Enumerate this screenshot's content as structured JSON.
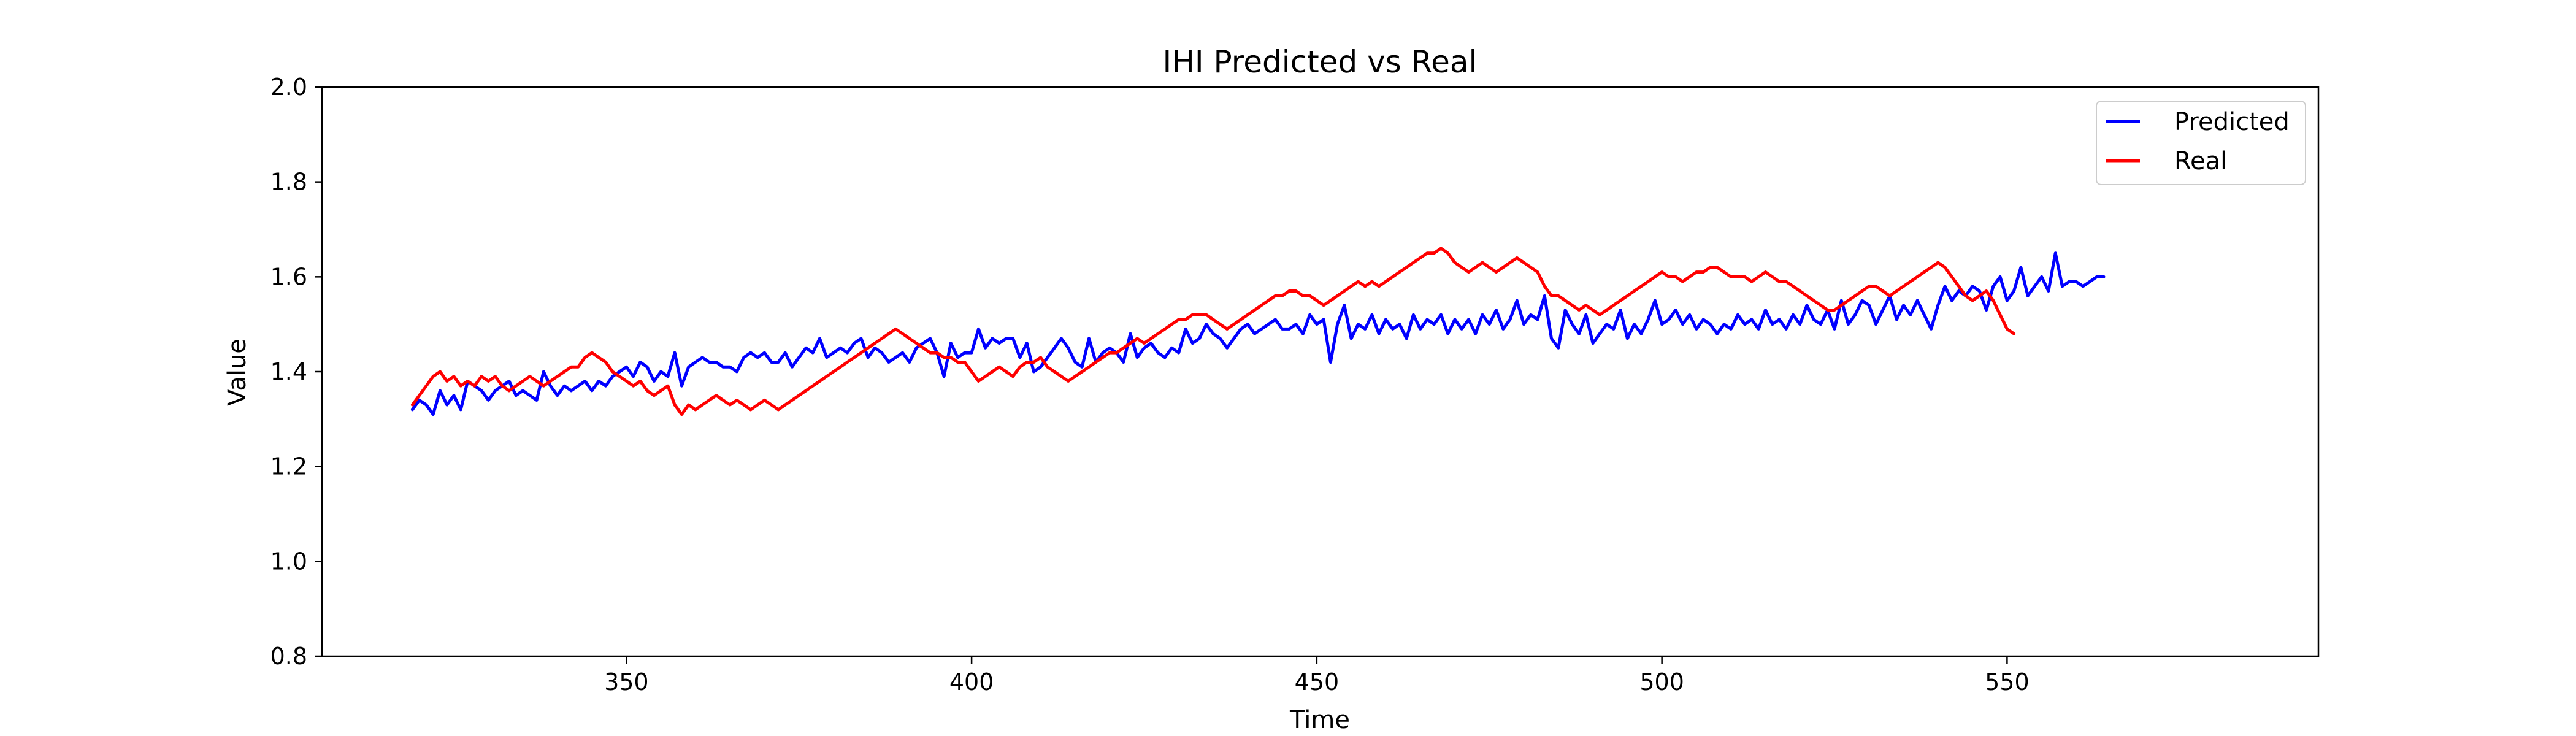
{
  "chart_data": {
    "type": "line",
    "title": "IHI Predicted vs Real",
    "xlabel": "Time",
    "ylabel": "Value",
    "xlim": [
      305.9,
      595.1
    ],
    "ylim": [
      0.8,
      2.0
    ],
    "x_ticks": [
      350,
      400,
      450,
      500,
      550
    ],
    "y_ticks": [
      0.8,
      1.0,
      1.2,
      1.4,
      1.6,
      1.8,
      2.0
    ],
    "y_tick_labels": [
      "0.8",
      "1.0",
      "1.2",
      "1.4",
      "1.6",
      "1.8",
      "2.0"
    ],
    "grid": false,
    "legend_position": "top-right",
    "x_start": 319,
    "x_step": 1,
    "series": [
      {
        "name": "Predicted",
        "color": "#0000ff",
        "values": [
          1.32,
          1.34,
          1.33,
          1.31,
          1.36,
          1.33,
          1.35,
          1.32,
          1.38,
          1.37,
          1.36,
          1.34,
          1.36,
          1.37,
          1.38,
          1.35,
          1.36,
          1.35,
          1.34,
          1.4,
          1.37,
          1.35,
          1.37,
          1.36,
          1.37,
          1.38,
          1.36,
          1.38,
          1.37,
          1.39,
          1.4,
          1.41,
          1.39,
          1.42,
          1.41,
          1.38,
          1.4,
          1.39,
          1.44,
          1.37,
          1.41,
          1.42,
          1.43,
          1.42,
          1.42,
          1.41,
          1.41,
          1.4,
          1.43,
          1.44,
          1.43,
          1.44,
          1.42,
          1.42,
          1.44,
          1.41,
          1.43,
          1.45,
          1.44,
          1.47,
          1.43,
          1.44,
          1.45,
          1.44,
          1.46,
          1.47,
          1.43,
          1.45,
          1.44,
          1.42,
          1.43,
          1.44,
          1.42,
          1.45,
          1.46,
          1.47,
          1.44,
          1.39,
          1.46,
          1.43,
          1.44,
          1.44,
          1.49,
          1.45,
          1.47,
          1.46,
          1.47,
          1.47,
          1.43,
          1.46,
          1.4,
          1.41,
          1.43,
          1.45,
          1.47,
          1.45,
          1.42,
          1.41,
          1.47,
          1.42,
          1.44,
          1.45,
          1.44,
          1.42,
          1.48,
          1.43,
          1.45,
          1.46,
          1.44,
          1.43,
          1.45,
          1.44,
          1.49,
          1.46,
          1.47,
          1.5,
          1.48,
          1.47,
          1.45,
          1.47,
          1.49,
          1.5,
          1.48,
          1.49,
          1.5,
          1.51,
          1.49,
          1.49,
          1.5,
          1.48,
          1.52,
          1.5,
          1.51,
          1.42,
          1.5,
          1.54,
          1.47,
          1.5,
          1.49,
          1.52,
          1.48,
          1.51,
          1.49,
          1.5,
          1.47,
          1.52,
          1.49,
          1.51,
          1.5,
          1.52,
          1.48,
          1.51,
          1.49,
          1.51,
          1.48,
          1.52,
          1.5,
          1.53,
          1.49,
          1.51,
          1.55,
          1.5,
          1.52,
          1.51,
          1.56,
          1.47,
          1.45,
          1.53,
          1.5,
          1.48,
          1.52,
          1.46,
          1.48,
          1.5,
          1.49,
          1.53,
          1.47,
          1.5,
          1.48,
          1.51,
          1.55,
          1.5,
          1.51,
          1.53,
          1.5,
          1.52,
          1.49,
          1.51,
          1.5,
          1.48,
          1.5,
          1.49,
          1.52,
          1.5,
          1.51,
          1.49,
          1.53,
          1.5,
          1.51,
          1.49,
          1.52,
          1.5,
          1.54,
          1.51,
          1.5,
          1.53,
          1.49,
          1.55,
          1.5,
          1.52,
          1.55,
          1.54,
          1.5,
          1.53,
          1.56,
          1.51,
          1.54,
          1.52,
          1.55,
          1.52,
          1.49,
          1.54,
          1.58,
          1.55,
          1.57,
          1.56,
          1.58,
          1.57,
          1.53,
          1.58,
          1.6,
          1.55,
          1.57,
          1.62,
          1.56,
          1.58,
          1.6,
          1.57,
          1.65,
          1.58,
          1.59,
          1.59,
          1.58,
          1.59,
          1.6,
          1.6
        ]
      },
      {
        "name": "Real",
        "color": "#ff0000",
        "values": [
          1.33,
          1.35,
          1.37,
          1.39,
          1.4,
          1.38,
          1.39,
          1.37,
          1.38,
          1.37,
          1.39,
          1.38,
          1.39,
          1.37,
          1.36,
          1.37,
          1.38,
          1.39,
          1.38,
          1.37,
          1.38,
          1.39,
          1.4,
          1.41,
          1.41,
          1.43,
          1.44,
          1.43,
          1.42,
          1.4,
          1.39,
          1.38,
          1.37,
          1.38,
          1.36,
          1.35,
          1.36,
          1.37,
          1.33,
          1.31,
          1.33,
          1.32,
          1.33,
          1.34,
          1.35,
          1.34,
          1.33,
          1.34,
          1.33,
          1.32,
          1.33,
          1.34,
          1.33,
          1.32,
          1.33,
          1.34,
          1.35,
          1.36,
          1.37,
          1.38,
          1.39,
          1.4,
          1.41,
          1.42,
          1.43,
          1.44,
          1.45,
          1.46,
          1.47,
          1.48,
          1.49,
          1.48,
          1.47,
          1.46,
          1.45,
          1.44,
          1.44,
          1.43,
          1.43,
          1.42,
          1.42,
          1.4,
          1.38,
          1.39,
          1.4,
          1.41,
          1.4,
          1.39,
          1.41,
          1.42,
          1.42,
          1.43,
          1.41,
          1.4,
          1.39,
          1.38,
          1.39,
          1.4,
          1.41,
          1.42,
          1.43,
          1.44,
          1.44,
          1.45,
          1.46,
          1.47,
          1.46,
          1.47,
          1.48,
          1.49,
          1.5,
          1.51,
          1.51,
          1.52,
          1.52,
          1.52,
          1.51,
          1.5,
          1.49,
          1.5,
          1.51,
          1.52,
          1.53,
          1.54,
          1.55,
          1.56,
          1.56,
          1.57,
          1.57,
          1.56,
          1.56,
          1.55,
          1.54,
          1.55,
          1.56,
          1.57,
          1.58,
          1.59,
          1.58,
          1.59,
          1.58,
          1.59,
          1.6,
          1.61,
          1.62,
          1.63,
          1.64,
          1.65,
          1.65,
          1.66,
          1.65,
          1.63,
          1.62,
          1.61,
          1.62,
          1.63,
          1.62,
          1.61,
          1.62,
          1.63,
          1.64,
          1.63,
          1.62,
          1.61,
          1.58,
          1.56,
          1.56,
          1.55,
          1.54,
          1.53,
          1.54,
          1.53,
          1.52,
          1.53,
          1.54,
          1.55,
          1.56,
          1.57,
          1.58,
          1.59,
          1.6,
          1.61,
          1.6,
          1.6,
          1.59,
          1.6,
          1.61,
          1.61,
          1.62,
          1.62,
          1.61,
          1.6,
          1.6,
          1.6,
          1.59,
          1.6,
          1.61,
          1.6,
          1.59,
          1.59,
          1.58,
          1.57,
          1.56,
          1.55,
          1.54,
          1.53,
          1.53,
          1.54,
          1.55,
          1.56,
          1.57,
          1.58,
          1.58,
          1.57,
          1.56,
          1.57,
          1.58,
          1.59,
          1.6,
          1.61,
          1.62,
          1.63,
          1.62,
          1.6,
          1.58,
          1.56,
          1.55,
          1.56,
          1.57,
          1.55,
          1.52,
          1.49,
          1.48
        ]
      }
    ]
  }
}
